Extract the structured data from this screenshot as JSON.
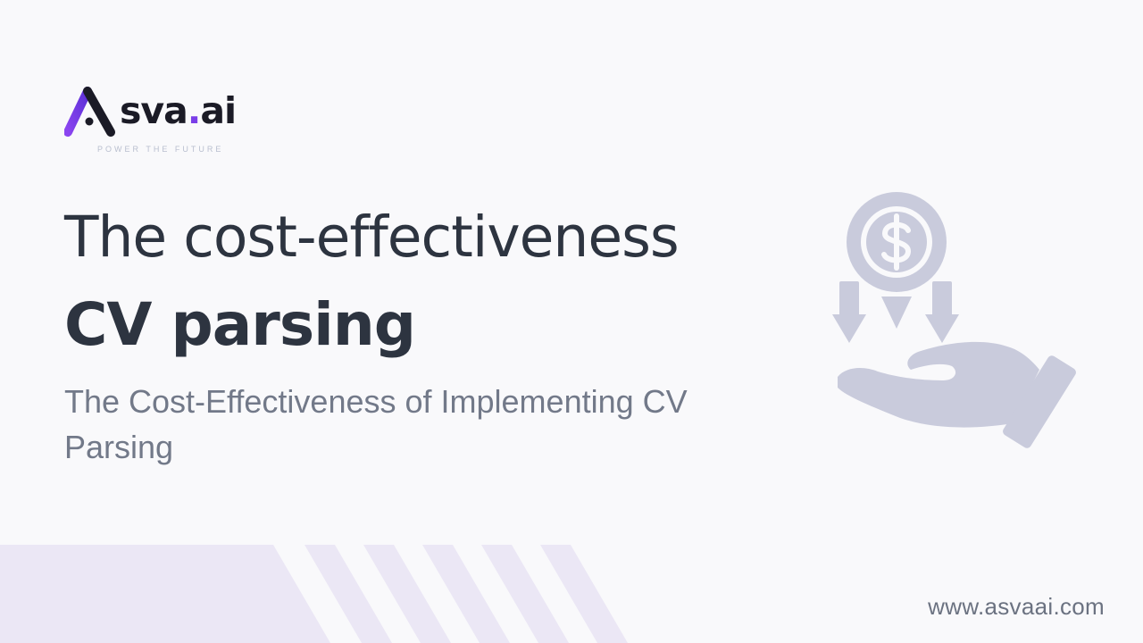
{
  "logo": {
    "wordmark_main": "sva",
    "wordmark_dot": ".",
    "wordmark_suffix": "ai",
    "tagline": "POWER THE FUTURE",
    "icon": "asva-a-logo-icon",
    "accent_color": "#7a3ee8"
  },
  "heading": {
    "line1": "The cost-effectiveness",
    "line2": "CV parsing"
  },
  "subtitle": "The Cost-Effectiveness of Implementing CV Parsing",
  "illustration": {
    "icon": "hand-receiving-money-icon",
    "color": "#c9cbdc"
  },
  "footer": {
    "website": "www.asvaai.com",
    "stripe_color": "#ebe7f5"
  }
}
